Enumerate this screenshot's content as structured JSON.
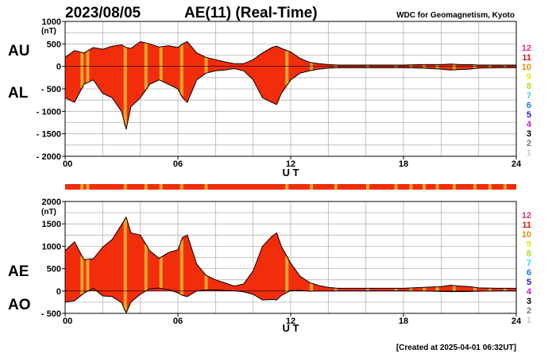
{
  "header": {
    "date": "2023/08/05",
    "title": "AE(11) (Real-Time)",
    "source": "WDC for Geomagnetism, Kyoto"
  },
  "footer": {
    "created": "[Created at 2025-04-01 06:32UT]"
  },
  "colors": {
    "fill_main": "#f22d0c",
    "fill_highlight": "#f0a629",
    "grid": "#b4b4b4",
    "outline": "#000000"
  },
  "legend": [
    {
      "label": "12",
      "color": "#e8317a"
    },
    {
      "label": "11",
      "color": "#e8120a"
    },
    {
      "label": "10",
      "color": "#f08a0a"
    },
    {
      "label": "9",
      "color": "#e6e60a"
    },
    {
      "label": "8",
      "color": "#a2e018"
    },
    {
      "label": "7",
      "color": "#2ad6e6"
    },
    {
      "label": "6",
      "color": "#1a78e6"
    },
    {
      "label": "5",
      "color": "#1a1ad6"
    },
    {
      "label": "4",
      "color": "#c41ad6"
    },
    {
      "label": "3",
      "color": "#000000"
    },
    {
      "label": "2",
      "color": "#777777"
    },
    {
      "label": "1",
      "color": "#c8c8c8"
    }
  ],
  "chart_data": [
    {
      "type": "area",
      "panel": "AU/AL",
      "unit": "(nT)",
      "upper_label": "AU",
      "lower_label": "AL",
      "xlabel": "U T",
      "xlim": [
        0,
        24
      ],
      "ylim": [
        -2000,
        1000
      ],
      "x_ticks": [
        "00",
        "06",
        "12",
        "18",
        "24"
      ],
      "y_ticks": [
        "1000",
        "500",
        "0",
        "- 500",
        "- 1000",
        "- 1500",
        "- 2000"
      ],
      "grid": true,
      "x": [
        0,
        0.5,
        1,
        1.5,
        2,
        2.5,
        3,
        3.25,
        3.5,
        4,
        4.5,
        5,
        5.5,
        6,
        6.25,
        6.5,
        7,
        7.5,
        8,
        8.5,
        9,
        9.5,
        10,
        10.5,
        11,
        11.25,
        11.5,
        12,
        12.5,
        13,
        13.5,
        14,
        14.5,
        15,
        16,
        17,
        18,
        19,
        20,
        20.5,
        21,
        21.5,
        22,
        23,
        24
      ],
      "series": [
        {
          "name": "AU",
          "values": [
            200,
            350,
            300,
            420,
            380,
            450,
            480,
            420,
            400,
            550,
            500,
            430,
            460,
            420,
            500,
            550,
            300,
            200,
            150,
            100,
            60,
            60,
            150,
            300,
            420,
            450,
            400,
            320,
            180,
            90,
            60,
            40,
            30,
            30,
            30,
            30,
            30,
            40,
            40,
            50,
            40,
            40,
            30,
            30,
            30
          ]
        },
        {
          "name": "AL",
          "values": [
            -700,
            -800,
            -400,
            -300,
            -600,
            -700,
            -1000,
            -1400,
            -900,
            -700,
            -400,
            -300,
            -400,
            -500,
            -700,
            -800,
            -300,
            -150,
            -100,
            -80,
            -50,
            -100,
            -300,
            -700,
            -800,
            -850,
            -600,
            -300,
            -150,
            -100,
            -60,
            -40,
            -30,
            -30,
            -30,
            -30,
            -30,
            -40,
            -60,
            -80,
            -70,
            -60,
            -40,
            -30,
            -30
          ]
        }
      ]
    },
    {
      "type": "area",
      "panel": "AE/AO",
      "unit": "(nT)",
      "upper_label": "AE",
      "lower_label": "AO",
      "xlabel": "U T",
      "xlim": [
        0,
        24
      ],
      "ylim": [
        -500,
        2000
      ],
      "x_ticks": [
        "00",
        "06",
        "12",
        "18",
        "24"
      ],
      "y_ticks": [
        "2000",
        "1500",
        "1000",
        "500",
        "0",
        "- 500"
      ],
      "grid": true,
      "x": [
        0,
        0.5,
        1,
        1.5,
        2,
        2.5,
        3,
        3.25,
        3.5,
        4,
        4.5,
        5,
        5.5,
        6,
        6.25,
        6.5,
        7,
        7.5,
        8,
        8.5,
        9,
        9.5,
        10,
        10.5,
        11,
        11.25,
        11.5,
        12,
        12.5,
        13,
        13.5,
        14,
        14.5,
        15,
        16,
        17,
        18,
        19,
        20,
        20.5,
        21,
        21.5,
        22,
        23,
        24
      ],
      "series": [
        {
          "name": "AE",
          "values": [
            900,
            1100,
            700,
            720,
            980,
            1150,
            1480,
            1650,
            1300,
            1250,
            900,
            730,
            860,
            920,
            1200,
            1250,
            600,
            350,
            250,
            180,
            110,
            160,
            450,
            1000,
            1220,
            1300,
            1000,
            620,
            330,
            190,
            120,
            80,
            60,
            60,
            60,
            60,
            60,
            80,
            100,
            130,
            110,
            100,
            70,
            60,
            60
          ]
        },
        {
          "name": "AO",
          "values": [
            -250,
            -220,
            -50,
            60,
            -110,
            -125,
            -260,
            -490,
            -250,
            -75,
            50,
            65,
            30,
            -40,
            -100,
            -125,
            0,
            25,
            25,
            10,
            5,
            -20,
            -75,
            -200,
            -190,
            -200,
            -100,
            10,
            15,
            -5,
            0,
            0,
            0,
            0,
            0,
            0,
            0,
            0,
            -10,
            -15,
            -15,
            -10,
            -5,
            0,
            0
          ]
        }
      ]
    }
  ]
}
